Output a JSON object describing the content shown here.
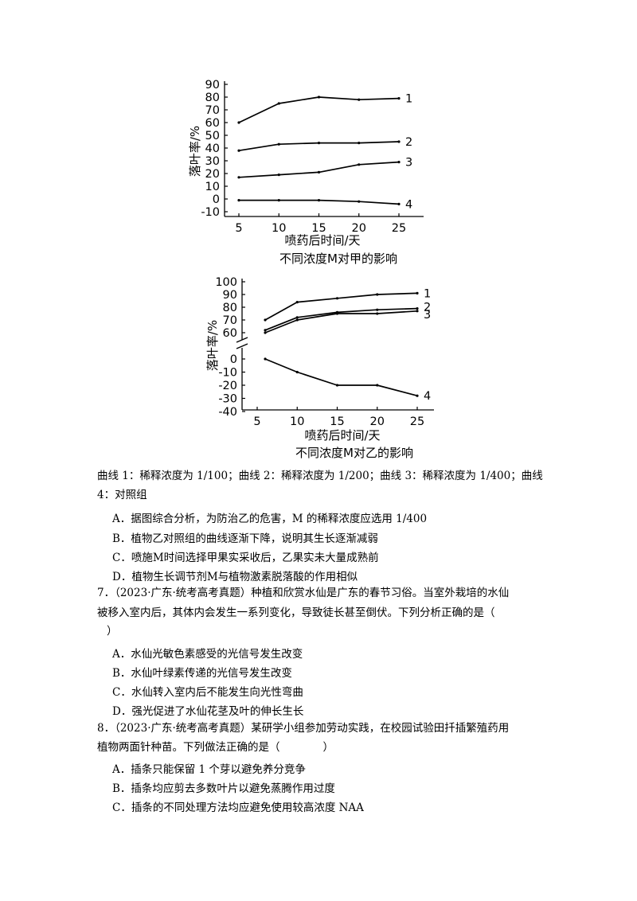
{
  "chart_data": [
    {
      "type": "line",
      "title": "不同浓度M对甲的影响",
      "xlabel": "喷药后时间/天",
      "ylabel": "落叶率/%",
      "xlim": [
        5,
        25
      ],
      "ylim": [
        -10,
        90
      ],
      "x_ticks": [
        5,
        10,
        15,
        20,
        25
      ],
      "y_ticks": [
        90,
        80,
        70,
        60,
        50,
        40,
        30,
        20,
        10,
        0,
        -10
      ],
      "grid": false,
      "series": [
        {
          "name": "1",
          "x": [
            5,
            10,
            15,
            20,
            25
          ],
          "y": [
            60,
            75,
            80,
            78,
            79
          ]
        },
        {
          "name": "2",
          "x": [
            5,
            10,
            15,
            20,
            25
          ],
          "y": [
            38,
            43,
            44,
            44,
            45
          ]
        },
        {
          "name": "3",
          "x": [
            5,
            10,
            15,
            20,
            25
          ],
          "y": [
            17,
            19,
            21,
            27,
            29
          ]
        },
        {
          "name": "4",
          "x": [
            5,
            10,
            15,
            20,
            25
          ],
          "y": [
            -1,
            -1,
            -1,
            -2,
            -4
          ]
        }
      ]
    },
    {
      "type": "line",
      "title": "不同浓度M对乙的影响",
      "xlabel": "喷药后时间/天",
      "ylabel": "落叶率/%",
      "xlim": [
        5,
        25
      ],
      "y_axis_break": true,
      "ylim_upper": [
        60,
        100
      ],
      "ylim_lower": [
        -40,
        0
      ],
      "x_ticks": [
        5,
        10,
        15,
        20,
        25
      ],
      "y_ticks": [
        100,
        90,
        80,
        70,
        60,
        0,
        -10,
        -20,
        -30,
        -40
      ],
      "grid": false,
      "series": [
        {
          "name": "1",
          "x": [
            6,
            10,
            15,
            20,
            25
          ],
          "y": [
            70,
            84,
            87,
            90,
            91
          ]
        },
        {
          "name": "2",
          "x": [
            6,
            10,
            15,
            20,
            25
          ],
          "y": [
            62,
            72,
            76,
            78,
            79
          ]
        },
        {
          "name": "3",
          "x": [
            6,
            10,
            15,
            20,
            25
          ],
          "y": [
            60,
            70,
            75,
            75,
            77
          ]
        },
        {
          "name": "4",
          "x": [
            6,
            10,
            15,
            20,
            25
          ],
          "y": [
            0,
            -10,
            -20,
            -20,
            -28
          ]
        }
      ]
    }
  ],
  "text": {
    "legend_line1": "曲线 1：稀释浓度为 1/100；曲线 2：稀释浓度为 1/200；曲线 3：稀释浓度为 1/400；曲线",
    "legend_line2": "4：对照组",
    "q6_a": "A．据图综合分析，为防治乙的危害，M 的稀释浓度应选用 1/400",
    "q6_b": "B．植物乙对照组的曲线逐渐下降，说明其生长逐渐减弱",
    "q6_c": "C．喷施M时间选择甲果实采收后，乙果实未大量成熟前",
    "q6_d": "D．植物生长调节剂M与植物激素脱落酸的作用相似",
    "q7_line1": "7．（2023·广东·统考高考真题）种植和欣赏水仙是广东的春节习俗。当室外栽培的水仙",
    "q7_line2": "被移入室内后，其体内会发生一系列变化，导致徒长甚至倒伏。下列分析正确的是（",
    "q7_line3": "）",
    "q7_a": "A．水仙光敏色素感受的光信号发生改变",
    "q7_b": "B．水仙叶绿素传递的光信号发生改变",
    "q7_c": "C．水仙转入室内后不能发生向光性弯曲",
    "q7_d": "D．强光促进了水仙花茎及叶的伸长生长",
    "q8_line1": "8．（2023·广东·统考高考真题）某研学小组参加劳动实践，在校园试验田扦插繁殖药用",
    "q8_line2": "植物两面针种苗。下列做法正确的是（　　　　）",
    "q8_a": "A．插条只能保留 1 个芽以避免养分竞争",
    "q8_b": "B．插条均应剪去多数叶片以避免蒸腾作用过度",
    "q8_c": "C．插条的不同处理方法均应避免使用较高浓度 NAA"
  }
}
